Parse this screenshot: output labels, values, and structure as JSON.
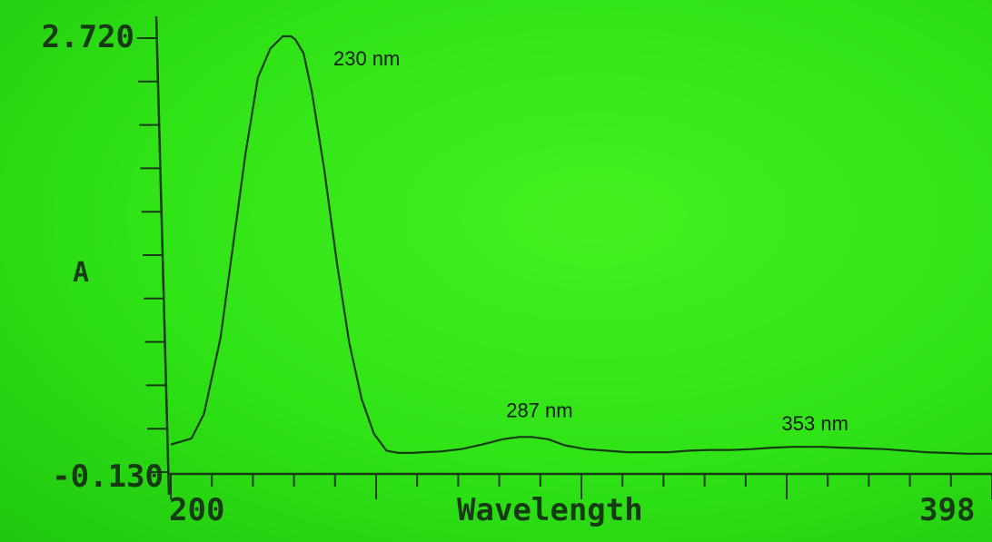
{
  "chart_data": {
    "type": "line",
    "title": "",
    "xlabel": "Wavelength",
    "ylabel": "A",
    "xlim": [
      200,
      398
    ],
    "ylim": [
      -0.13,
      2.72
    ],
    "x_tick_labels": [
      "200",
      "398"
    ],
    "y_tick_labels": [
      "2.720",
      "-0.130"
    ],
    "grid": false,
    "series": [
      {
        "x": [
          200,
          205,
          208,
          212,
          215,
          218,
          221,
          224,
          227,
          229,
          230,
          232,
          234,
          237,
          240,
          243,
          246,
          249,
          252,
          255,
          258,
          261,
          265,
          270,
          275,
          280,
          284,
          287,
          291,
          295,
          300,
          305,
          310,
          315,
          320,
          325,
          330,
          335,
          340,
          345,
          350,
          353,
          357,
          362,
          367,
          372,
          377,
          382,
          387,
          392,
          398
        ],
        "values": [
          0.05,
          0.09,
          0.25,
          0.75,
          1.35,
          1.95,
          2.45,
          2.64,
          2.72,
          2.72,
          2.7,
          2.61,
          2.36,
          1.85,
          1.25,
          0.72,
          0.35,
          0.12,
          0.01,
          -0.005,
          -0.005,
          0.0,
          0.005,
          0.02,
          0.05,
          0.085,
          0.1,
          0.1,
          0.085,
          0.045,
          0.02,
          0.01,
          0.0,
          0.0,
          0.0,
          0.01,
          0.015,
          0.015,
          0.02,
          0.03,
          0.035,
          0.035,
          0.035,
          0.03,
          0.025,
          0.02,
          0.01,
          0.0,
          -0.005,
          -0.01,
          -0.01
        ]
      }
    ],
    "annotations": [
      {
        "text": "230 nm",
        "x": 230,
        "y": 2.72
      },
      {
        "text": "287 nm",
        "x": 287,
        "y": 0.1
      },
      {
        "text": "353 nm",
        "x": 353,
        "y": 0.035
      }
    ]
  },
  "colors": {
    "background": "#2ee012",
    "trace": "#163a12",
    "annotation": "#0d1a0d"
  }
}
